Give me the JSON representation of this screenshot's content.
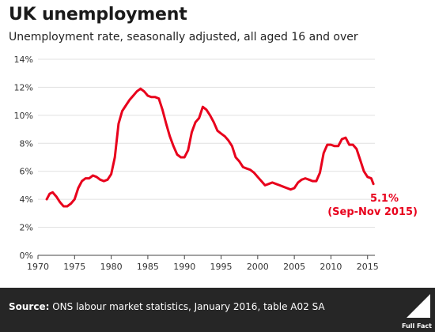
{
  "header": {
    "title": "UK unemployment",
    "subtitle": "Unemployment rate, seasonally adjusted, all aged 16 and over"
  },
  "footer": {
    "source_label": "Source:",
    "source_text": " ONS labour market statistics, January 2016, table A02 SA",
    "logo_text": "Full Fact"
  },
  "annotation": {
    "value": "5.1%",
    "period": "(Sep-Nov 2015)"
  },
  "colors": {
    "line": "#e8001c",
    "footer_bg": "#262626"
  },
  "chart_data": {
    "type": "line",
    "title": "UK unemployment",
    "subtitle": "Unemployment rate, seasonally adjusted, all aged 16 and over",
    "xlabel": "",
    "ylabel": "",
    "xlim": [
      1970,
      2016
    ],
    "ylim": [
      0,
      14
    ],
    "x_ticks": [
      1970,
      1975,
      1980,
      1985,
      1990,
      1995,
      2000,
      2005,
      2010,
      2015
    ],
    "y_ticks": [
      0,
      2,
      4,
      6,
      8,
      10,
      12,
      14
    ],
    "y_tick_labels": [
      "0%",
      "2%",
      "4%",
      "6%",
      "8%",
      "10%",
      "12%",
      "14%"
    ],
    "grid": "horizontal",
    "series": [
      {
        "name": "",
        "x": [
          1971.2,
          1971.6,
          1972.0,
          1972.5,
          1973.0,
          1973.5,
          1974.0,
          1974.5,
          1975.0,
          1975.5,
          1976.0,
          1976.5,
          1977.0,
          1977.5,
          1978.0,
          1978.5,
          1979.0,
          1979.5,
          1980.0,
          1980.5,
          1981.0,
          1981.5,
          1982.0,
          1982.5,
          1983.0,
          1983.5,
          1984.0,
          1984.5,
          1985.0,
          1985.5,
          1986.0,
          1986.5,
          1987.0,
          1987.5,
          1988.0,
          1988.5,
          1989.0,
          1989.5,
          1990.0,
          1990.5,
          1991.0,
          1991.5,
          1992.0,
          1992.5,
          1993.0,
          1993.5,
          1994.0,
          1994.5,
          1995.0,
          1995.5,
          1996.0,
          1996.5,
          1997.0,
          1997.5,
          1998.0,
          1998.5,
          1999.0,
          1999.5,
          2000.0,
          2000.5,
          2001.0,
          2001.5,
          2002.0,
          2002.5,
          2003.0,
          2003.5,
          2004.0,
          2004.5,
          2005.0,
          2005.5,
          2006.0,
          2006.5,
          2007.0,
          2007.5,
          2008.0,
          2008.5,
          2009.0,
          2009.5,
          2010.0,
          2010.5,
          2011.0,
          2011.5,
          2012.0,
          2012.5,
          2013.0,
          2013.5,
          2014.0,
          2014.5,
          2015.0,
          2015.5,
          2015.8
        ],
        "values": [
          4.0,
          4.4,
          4.5,
          4.2,
          3.8,
          3.5,
          3.5,
          3.7,
          4.0,
          4.8,
          5.3,
          5.5,
          5.5,
          5.7,
          5.6,
          5.4,
          5.3,
          5.4,
          5.8,
          7.0,
          9.4,
          10.3,
          10.7,
          11.1,
          11.4,
          11.7,
          11.9,
          11.7,
          11.4,
          11.3,
          11.3,
          11.2,
          10.4,
          9.4,
          8.5,
          7.8,
          7.2,
          7.0,
          7.0,
          7.5,
          8.8,
          9.5,
          9.8,
          10.6,
          10.4,
          10.0,
          9.5,
          8.9,
          8.7,
          8.5,
          8.2,
          7.8,
          7.0,
          6.7,
          6.3,
          6.2,
          6.1,
          5.9,
          5.6,
          5.3,
          5.0,
          5.1,
          5.2,
          5.1,
          5.0,
          4.9,
          4.8,
          4.7,
          4.8,
          5.2,
          5.4,
          5.5,
          5.4,
          5.3,
          5.3,
          5.9,
          7.3,
          7.9,
          7.9,
          7.8,
          7.8,
          8.3,
          8.4,
          7.9,
          7.9,
          7.6,
          6.8,
          6.0,
          5.6,
          5.5,
          5.1
        ]
      }
    ]
  }
}
